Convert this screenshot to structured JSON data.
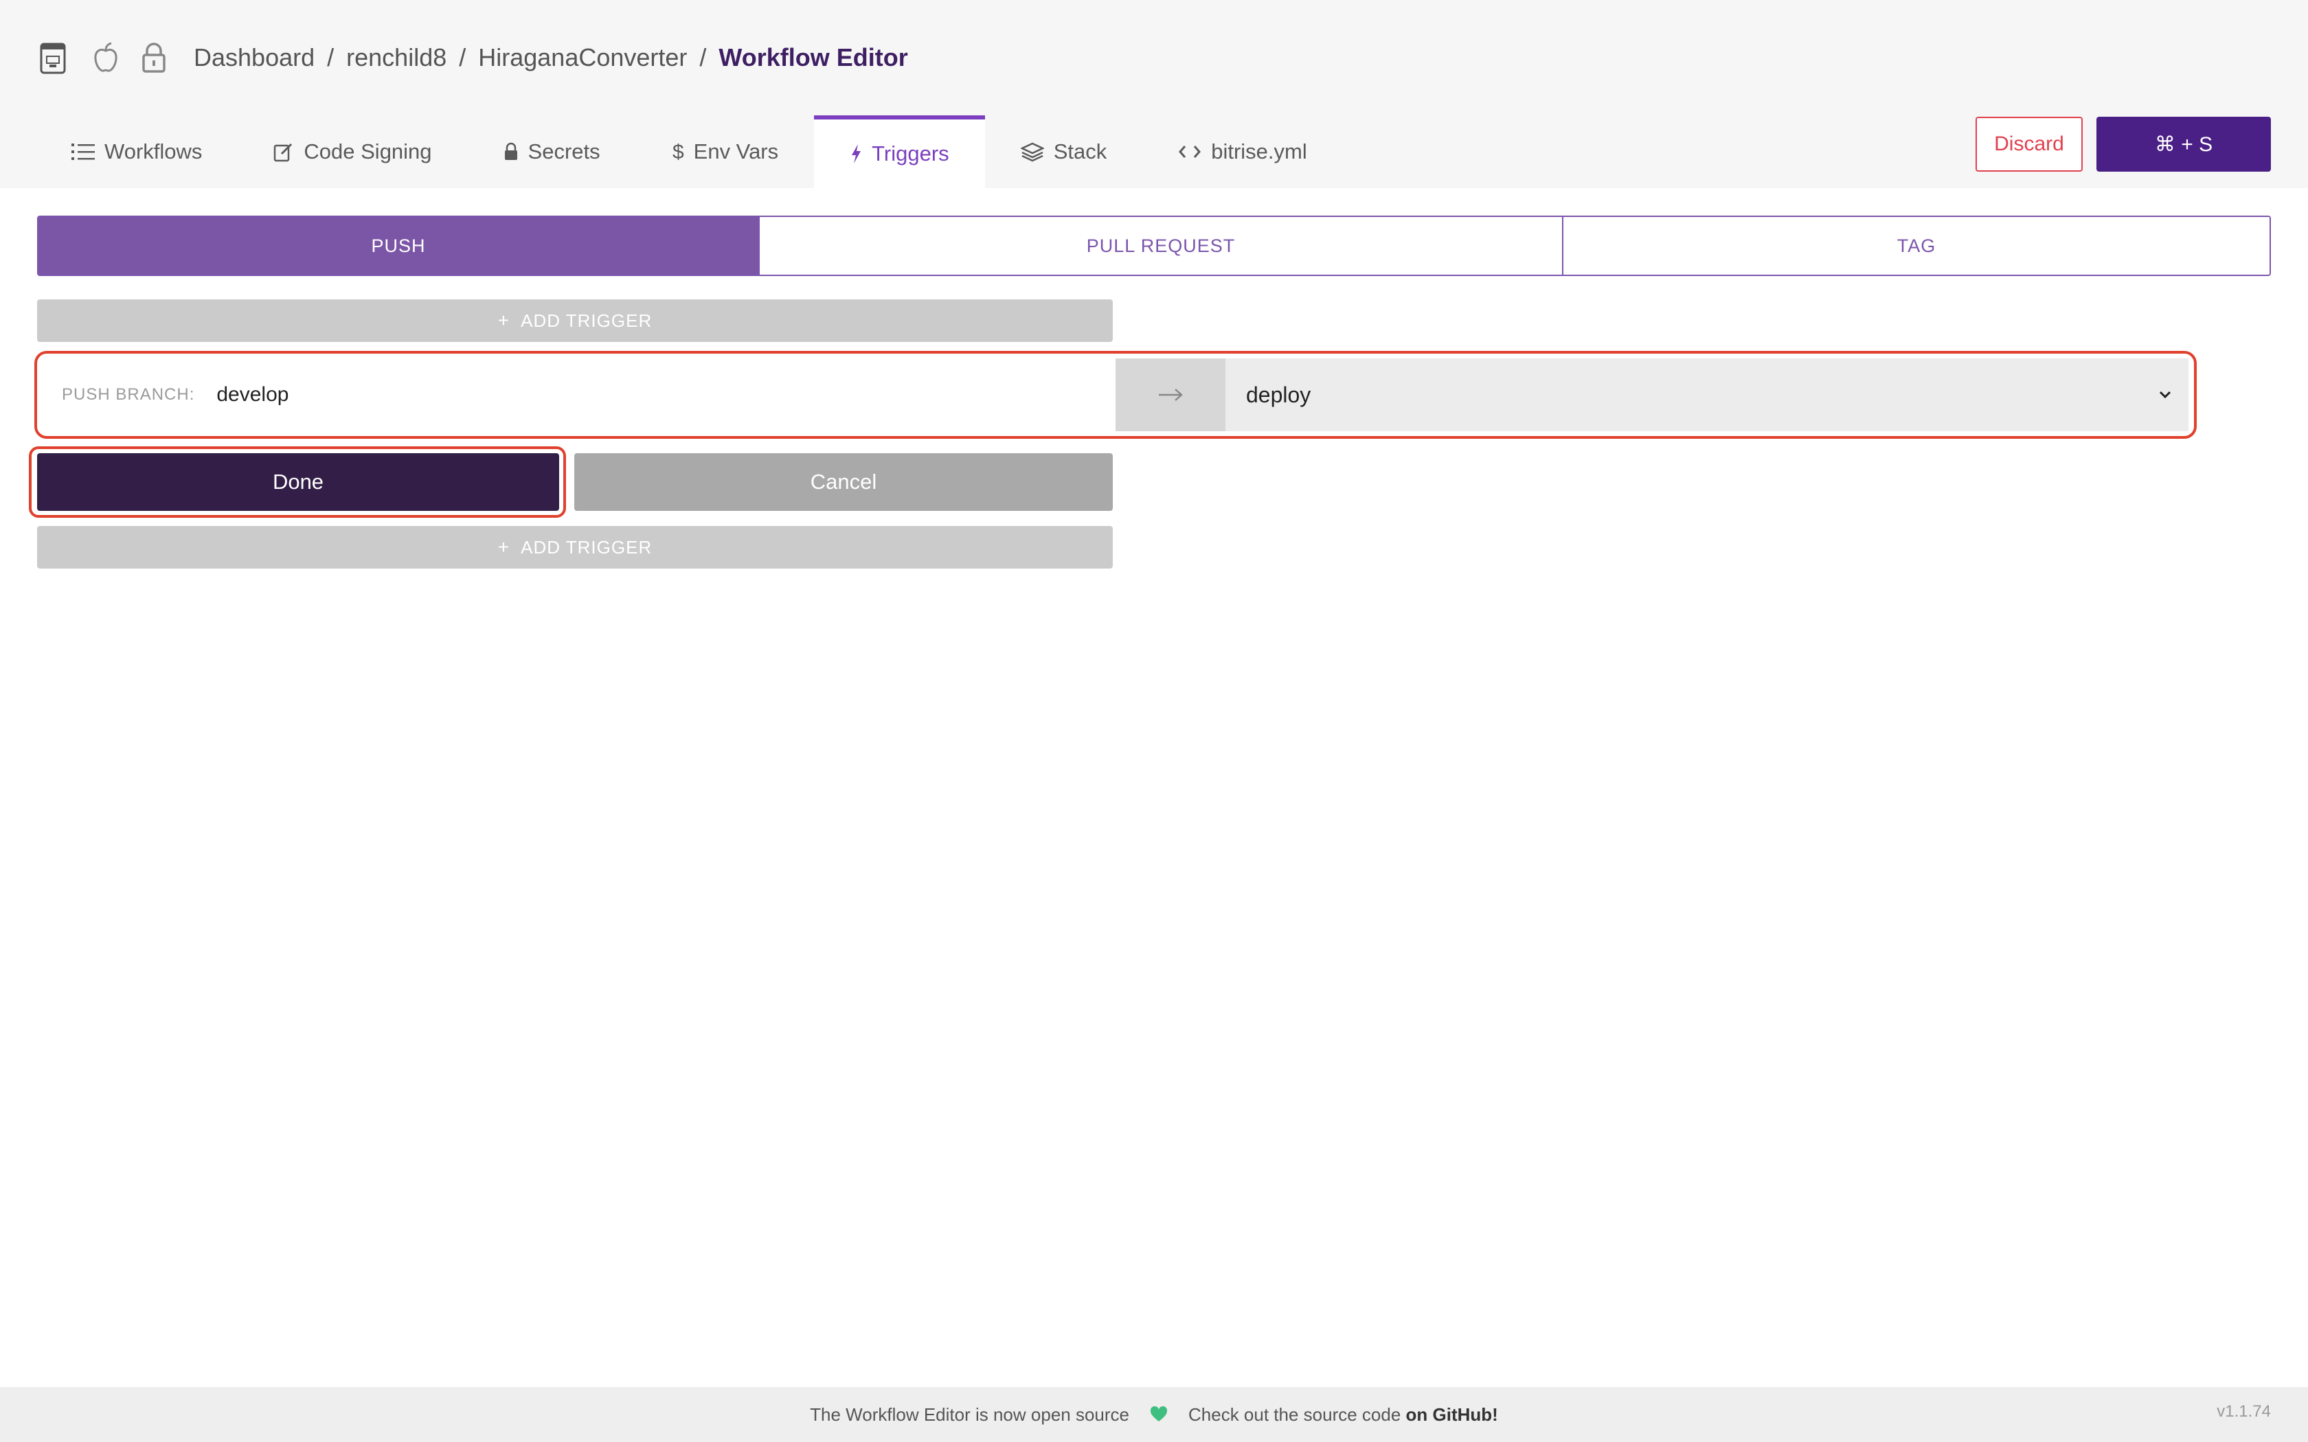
{
  "header": {
    "breadcrumb": {
      "items": [
        "Dashboard",
        "renchild8",
        "HiraganaConverter"
      ],
      "current": "Workflow Editor",
      "separator": "/"
    },
    "icons": [
      "app-icon",
      "apple-icon",
      "lock-icon"
    ]
  },
  "tabs": [
    {
      "label": "Workflows",
      "icon": "list-icon"
    },
    {
      "label": "Code Signing",
      "icon": "edit-icon"
    },
    {
      "label": "Secrets",
      "icon": "lock-icon"
    },
    {
      "label": "Env Vars",
      "icon": "dollar-icon"
    },
    {
      "label": "Triggers",
      "icon": "bolt-icon",
      "active": true
    },
    {
      "label": "Stack",
      "icon": "layers-icon"
    },
    {
      "label": "bitrise.yml",
      "icon": "code-icon"
    }
  ],
  "actions": {
    "discard_label": "Discard",
    "save_label": "⌘ + S"
  },
  "trigger_types": {
    "push": "PUSH",
    "pull_request": "PULL REQUEST",
    "tag": "TAG",
    "active": "PUSH"
  },
  "add_trigger_label": "ADD TRIGGER",
  "add_trigger_plus": "+",
  "trigger": {
    "branch_label": "PUSH BRANCH:",
    "branch_value": "develop",
    "workflow": "deploy"
  },
  "form": {
    "done_label": "Done",
    "cancel_label": "Cancel"
  },
  "footer": {
    "text1": "The Workflow Editor is now open source",
    "text2": "Check out the source code",
    "link": "on GitHub!",
    "version": "v1.1.74"
  },
  "colors": {
    "accent": "#7b55a6",
    "primary_dark": "#331e48",
    "danger": "#e0414e",
    "save": "#4a1f86"
  }
}
